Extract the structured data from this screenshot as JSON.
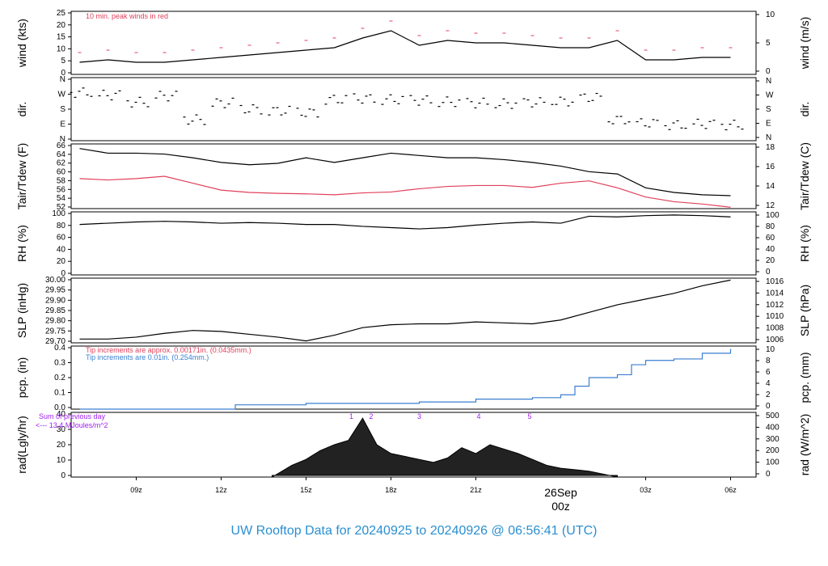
{
  "title": "UW Rooftop Data for 20240925  to  20240926 @ 06:56:41  (UTC)",
  "colors": {
    "frame": "#000000",
    "red": "#e0405a",
    "blue": "#3a7fd0",
    "purple": "#a020f0",
    "title": "#2a8fd0",
    "date": "#e0405a"
  },
  "date_label": {
    "day": "26Sep",
    "hour": "00z"
  },
  "x_ticks": [
    "09z",
    "12z",
    "15z",
    "18z",
    "21z",
    "03z",
    "06z"
  ],
  "chart_data": [
    {
      "type": "line",
      "name": "wind",
      "ylabel_left": "wind (kts)",
      "ylabel_right": "wind (m/s)",
      "left_ticks": [
        "0",
        "5",
        "10",
        "15",
        "20",
        "25"
      ],
      "right_ticks": [
        "0",
        "5",
        "10"
      ],
      "ylim": [
        0,
        26
      ],
      "annotation": "10 min. peak winds in red",
      "x_hours": [
        7,
        8,
        9,
        10,
        11,
        12,
        13,
        14,
        15,
        16,
        17,
        18,
        19,
        20,
        21,
        22,
        23,
        24,
        25,
        26,
        27,
        28,
        29,
        30
      ],
      "series": [
        {
          "values": [
            5,
            6,
            5,
            5,
            6,
            7,
            8,
            9,
            10,
            11,
            15,
            18,
            12,
            14,
            13,
            13,
            12,
            11,
            11,
            14,
            6,
            6,
            7,
            7
          ]
        }
      ]
    },
    {
      "type": "scatter",
      "name": "direction",
      "ylabel_left": "dir.",
      "ylabel_right": "dir.",
      "left_ticks": [
        "N",
        "E",
        "S",
        "W",
        "N"
      ],
      "right_ticks": [
        "N",
        "E",
        "S",
        "W",
        "N"
      ],
      "ylim": [
        0,
        360
      ],
      "x_hours": [
        7,
        8,
        9,
        10,
        11,
        12,
        13,
        14,
        15,
        16,
        17,
        18,
        19,
        20,
        21,
        22,
        23,
        24,
        25,
        26,
        27,
        28,
        29,
        30
      ],
      "series": [
        {
          "values": [
            275,
            260,
            220,
            255,
            120,
            215,
            180,
            170,
            160,
            235,
            240,
            235,
            230,
            222,
            215,
            212,
            218,
            225,
            245,
            120,
            100,
            90,
            95,
            90
          ]
        }
      ]
    },
    {
      "type": "line",
      "name": "temperature",
      "ylabel_left": "Tair/Tdew (F)",
      "ylabel_right": "Tair/Tdew (C)",
      "left_ticks": [
        "52",
        "54",
        "56",
        "58",
        "60",
        "62",
        "64",
        "66"
      ],
      "right_ticks": [
        "12",
        "14",
        "16",
        "18"
      ],
      "ylim": [
        52,
        66
      ],
      "x_hours": [
        7,
        8,
        9,
        10,
        11,
        12,
        13,
        14,
        15,
        16,
        17,
        18,
        19,
        20,
        21,
        22,
        23,
        24,
        25,
        26,
        27,
        28,
        29,
        30
      ],
      "series": [
        {
          "values": [
            65,
            64,
            64,
            63.8,
            63,
            62,
            61.5,
            61.8,
            63,
            62,
            63,
            64,
            63.5,
            63,
            63,
            62.6,
            62,
            61.2,
            60,
            59.5,
            56.5,
            55.5,
            55,
            54.8
          ]
        },
        {
          "values": [
            58.5,
            58.2,
            58.5,
            59,
            57.5,
            56,
            55.5,
            55.3,
            55.2,
            55,
            55.4,
            55.6,
            56.3,
            56.8,
            57,
            57,
            56.6,
            57.5,
            58,
            56.5,
            54.5,
            53.5,
            53,
            52.3
          ]
        }
      ]
    },
    {
      "type": "line",
      "name": "relative humidity",
      "ylabel_left": "RH (%)",
      "ylabel_right": "RH (%)",
      "left_ticks": [
        "0",
        "20",
        "40",
        "60",
        "80",
        "100"
      ],
      "right_ticks": [
        "0",
        "20",
        "40",
        "60",
        "80",
        "100"
      ],
      "ylim": [
        0,
        100
      ],
      "x_hours": [
        7,
        8,
        9,
        10,
        11,
        12,
        13,
        14,
        15,
        16,
        17,
        18,
        19,
        20,
        21,
        22,
        23,
        24,
        25,
        26,
        27,
        28,
        29,
        30
      ],
      "series": [
        {
          "values": [
            80,
            82,
            84,
            85,
            84,
            82,
            83,
            82,
            80,
            80,
            77,
            75,
            73,
            75,
            79,
            82,
            84,
            82,
            93,
            92,
            94,
            95,
            94,
            92
          ]
        }
      ]
    },
    {
      "type": "line",
      "name": "sea level pressure",
      "ylabel_left": "SLP (inHg)",
      "ylabel_right": "SLP (hPa)",
      "left_ticks": [
        "29.70",
        "29.75",
        "29.80",
        "29.85",
        "29.90",
        "29.95",
        "30.00"
      ],
      "right_ticks": [
        "1006",
        "1008",
        "1010",
        "1012",
        "1014",
        "1016"
      ],
      "ylim": [
        29.68,
        30.02
      ],
      "x_hours": [
        7,
        8,
        9,
        10,
        11,
        12,
        13,
        14,
        15,
        16,
        17,
        18,
        19,
        20,
        21,
        22,
        23,
        24,
        25,
        26,
        27,
        28,
        29,
        30
      ],
      "series": [
        {
          "values": [
            29.7,
            29.7,
            29.71,
            29.73,
            29.745,
            29.74,
            29.725,
            29.71,
            29.69,
            29.72,
            29.76,
            29.775,
            29.78,
            29.78,
            29.79,
            29.785,
            29.78,
            29.8,
            29.84,
            29.88,
            29.91,
            29.94,
            29.98,
            30.01
          ]
        }
      ]
    },
    {
      "type": "line",
      "name": "precipitation",
      "ylabel_left": "pcp. (in)",
      "ylabel_right": "pcp. (mm)",
      "left_ticks": [
        "0.0",
        "0.1",
        "0.2",
        "0.3",
        "0.4"
      ],
      "right_ticks": [
        "0",
        "2",
        "4",
        "6",
        "8",
        "10"
      ],
      "ylim": [
        0,
        0.44
      ],
      "annotations": [
        "Tip increments are approx. 0.00171in. (0.0435mm.)",
        "Tip increments are 0.01in. (0.254mm.)"
      ],
      "x_hours": [
        7,
        12,
        12.5,
        15,
        18,
        19,
        21,
        23,
        24,
        24.5,
        25,
        26,
        26.5,
        27,
        28,
        29,
        30
      ],
      "series": [
        {
          "values": [
            0,
            0,
            0.03,
            0.04,
            0.04,
            0.05,
            0.07,
            0.08,
            0.1,
            0.16,
            0.22,
            0.24,
            0.31,
            0.34,
            0.35,
            0.39,
            0.42
          ]
        }
      ]
    },
    {
      "type": "area",
      "name": "solar radiation",
      "ylabel_left": "rad(Lgly/hr)",
      "ylabel_right": "rad (W/m^2)",
      "left_ticks": [
        "0",
        "10",
        "20",
        "30",
        "40"
      ],
      "right_ticks": [
        "0",
        "100",
        "200",
        "300",
        "400",
        "500"
      ],
      "ylim": [
        0,
        44
      ],
      "annotations": [
        "Sum of previous day",
        "<--- 13.4 MJoules/m^2"
      ],
      "markers": [
        "1",
        "2",
        "3",
        "4",
        "5"
      ],
      "x_hours": [
        13.8,
        14.5,
        15,
        15.5,
        16,
        16.5,
        17,
        17.5,
        18,
        18.5,
        19,
        19.5,
        20,
        20.5,
        21,
        21.5,
        22,
        22.5,
        23,
        23.5,
        24,
        24.5,
        25,
        25.5,
        26
      ],
      "series": [
        {
          "values": [
            0,
            8,
            12,
            18,
            22,
            25,
            40,
            22,
            16,
            14,
            12,
            10,
            13,
            20,
            16,
            22,
            19,
            16,
            12,
            8,
            6,
            5,
            4,
            2,
            0
          ]
        }
      ]
    }
  ]
}
